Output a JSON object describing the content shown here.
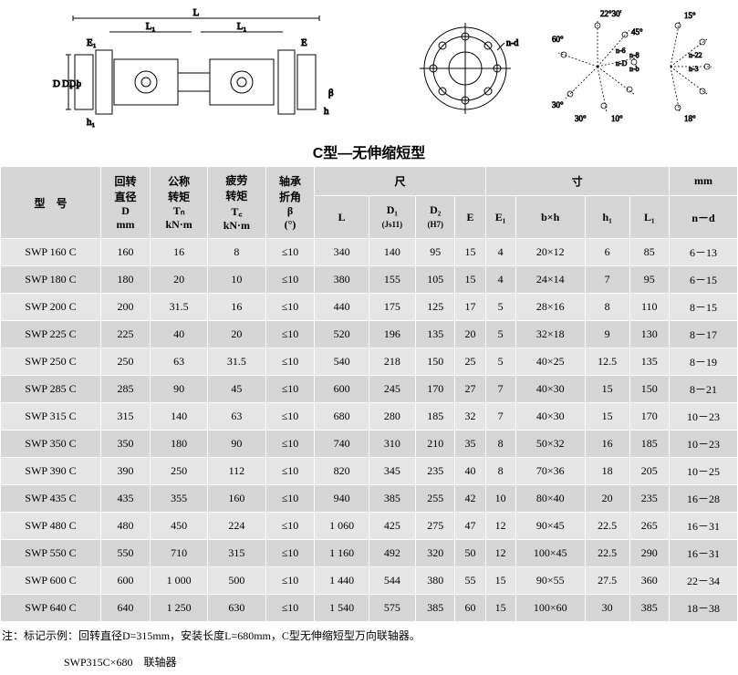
{
  "title": "C型—无伸缩短型",
  "headers": {
    "model": "型　号",
    "D": {
      "l1": "回转",
      "l2": "直径",
      "l3": "D",
      "l4": "mm"
    },
    "Tn": {
      "l1": "公称",
      "l2": "转矩",
      "l3": "Tₙ",
      "l4": "kN·m"
    },
    "Tf": {
      "l1": "疲劳",
      "l2": "转矩",
      "l3": "T꜀",
      "l4": "kN·m"
    },
    "beta": {
      "l1": "轴承",
      "l2": "折角",
      "l3": "β",
      "l4": "(°)"
    },
    "chi": "尺",
    "cun": "寸",
    "mm": "mm",
    "L": "L",
    "D1": "D₁",
    "D1sub": "(Js11)",
    "D2": "D₂",
    "D2sub": "(H7)",
    "E": "E",
    "E1": "E₁",
    "bh": "b×h",
    "h1": "h₁",
    "L1": "L₁",
    "nd": "n－d"
  },
  "rows": [
    {
      "m": "SWP 160 C",
      "D": "160",
      "Tn": "16",
      "Tf": "8",
      "b": "≤10",
      "L": "340",
      "D1": "140",
      "D2": "95",
      "E": "15",
      "E1": "4",
      "bh": "20×12",
      "h1": "6",
      "L1": "85",
      "nd": "6－13"
    },
    {
      "m": "SWP 180 C",
      "D": "180",
      "Tn": "20",
      "Tf": "10",
      "b": "≤10",
      "L": "380",
      "D1": "155",
      "D2": "105",
      "E": "15",
      "E1": "4",
      "bh": "24×14",
      "h1": "7",
      "L1": "95",
      "nd": "6－15"
    },
    {
      "m": "SWP 200 C",
      "D": "200",
      "Tn": "31.5",
      "Tf": "16",
      "b": "≤10",
      "L": "440",
      "D1": "175",
      "D2": "125",
      "E": "17",
      "E1": "5",
      "bh": "28×16",
      "h1": "8",
      "L1": "110",
      "nd": "8－15"
    },
    {
      "m": "SWP 225 C",
      "D": "225",
      "Tn": "40",
      "Tf": "20",
      "b": "≤10",
      "L": "520",
      "D1": "196",
      "D2": "135",
      "E": "20",
      "E1": "5",
      "bh": "32×18",
      "h1": "9",
      "L1": "130",
      "nd": "8－17"
    },
    {
      "m": "SWP 250 C",
      "D": "250",
      "Tn": "63",
      "Tf": "31.5",
      "b": "≤10",
      "L": "540",
      "D1": "218",
      "D2": "150",
      "E": "25",
      "E1": "5",
      "bh": "40×25",
      "h1": "12.5",
      "L1": "135",
      "nd": "8－19"
    },
    {
      "m": "SWP 285 C",
      "D": "285",
      "Tn": "90",
      "Tf": "45",
      "b": "≤10",
      "L": "600",
      "D1": "245",
      "D2": "170",
      "E": "27",
      "E1": "7",
      "bh": "40×30",
      "h1": "15",
      "L1": "150",
      "nd": "8－21"
    },
    {
      "m": "SWP 315 C",
      "D": "315",
      "Tn": "140",
      "Tf": "63",
      "b": "≤10",
      "L": "680",
      "D1": "280",
      "D2": "185",
      "E": "32",
      "E1": "7",
      "bh": "40×30",
      "h1": "15",
      "L1": "170",
      "nd": "10－23"
    },
    {
      "m": "SWP 350 C",
      "D": "350",
      "Tn": "180",
      "Tf": "90",
      "b": "≤10",
      "L": "740",
      "D1": "310",
      "D2": "210",
      "E": "35",
      "E1": "8",
      "bh": "50×32",
      "h1": "16",
      "L1": "185",
      "nd": "10－23"
    },
    {
      "m": "SWP 390 C",
      "D": "390",
      "Tn": "250",
      "Tf": "112",
      "b": "≤10",
      "L": "820",
      "D1": "345",
      "D2": "235",
      "E": "40",
      "E1": "8",
      "bh": "70×36",
      "h1": "18",
      "L1": "205",
      "nd": "10－25"
    },
    {
      "m": "SWP 435 C",
      "D": "435",
      "Tn": "355",
      "Tf": "160",
      "b": "≤10",
      "L": "940",
      "D1": "385",
      "D2": "255",
      "E": "42",
      "E1": "10",
      "bh": "80×40",
      "h1": "20",
      "L1": "235",
      "nd": "16－28"
    },
    {
      "m": "SWP 480 C",
      "D": "480",
      "Tn": "450",
      "Tf": "224",
      "b": "≤10",
      "L": "1 060",
      "D1": "425",
      "D2": "275",
      "E": "47",
      "E1": "12",
      "bh": "90×45",
      "h1": "22.5",
      "L1": "265",
      "nd": "16－31"
    },
    {
      "m": "SWP 550 C",
      "D": "550",
      "Tn": "710",
      "Tf": "315",
      "b": "≤10",
      "L": "1 160",
      "D1": "492",
      "D2": "320",
      "E": "50",
      "E1": "12",
      "bh": "100×45",
      "h1": "22.5",
      "L1": "290",
      "nd": "16－31"
    },
    {
      "m": "SWP 600 C",
      "D": "600",
      "Tn": "1 000",
      "Tf": "500",
      "b": "≤10",
      "L": "1 440",
      "D1": "544",
      "D2": "380",
      "E": "55",
      "E1": "15",
      "bh": "90×55",
      "h1": "27.5",
      "L1": "360",
      "nd": "22－34"
    },
    {
      "m": "SWP 640 C",
      "D": "640",
      "Tn": "1 250",
      "Tf": "630",
      "b": "≤10",
      "L": "1 540",
      "D1": "575",
      "D2": "385",
      "E": "60",
      "E1": "15",
      "bh": "100×60",
      "h1": "30",
      "L1": "385",
      "nd": "18－38"
    }
  ],
  "note1": "注：标记示例：回转直径D=315mm，安装长度L=680mm，C型无伸缩短型万向联轴器。",
  "note2": "SWP315C×680　联轴器",
  "diagrams": {
    "labels": {
      "L": "L",
      "L1": "L₁",
      "E": "E",
      "E1": "E₁",
      "D": "D",
      "D1": "D₁",
      "D2": "D₂",
      "b": "b",
      "h": "h",
      "h1": "h₁",
      "beta": "β",
      "nd": "n-d"
    },
    "angles": [
      "15°",
      "22°30'",
      "45°",
      "60°",
      "30°",
      "10°",
      "18°"
    ],
    "bolt_labels": [
      "n-6",
      "n-8",
      "n-D",
      "n-b",
      "n-22",
      "n-3"
    ]
  }
}
